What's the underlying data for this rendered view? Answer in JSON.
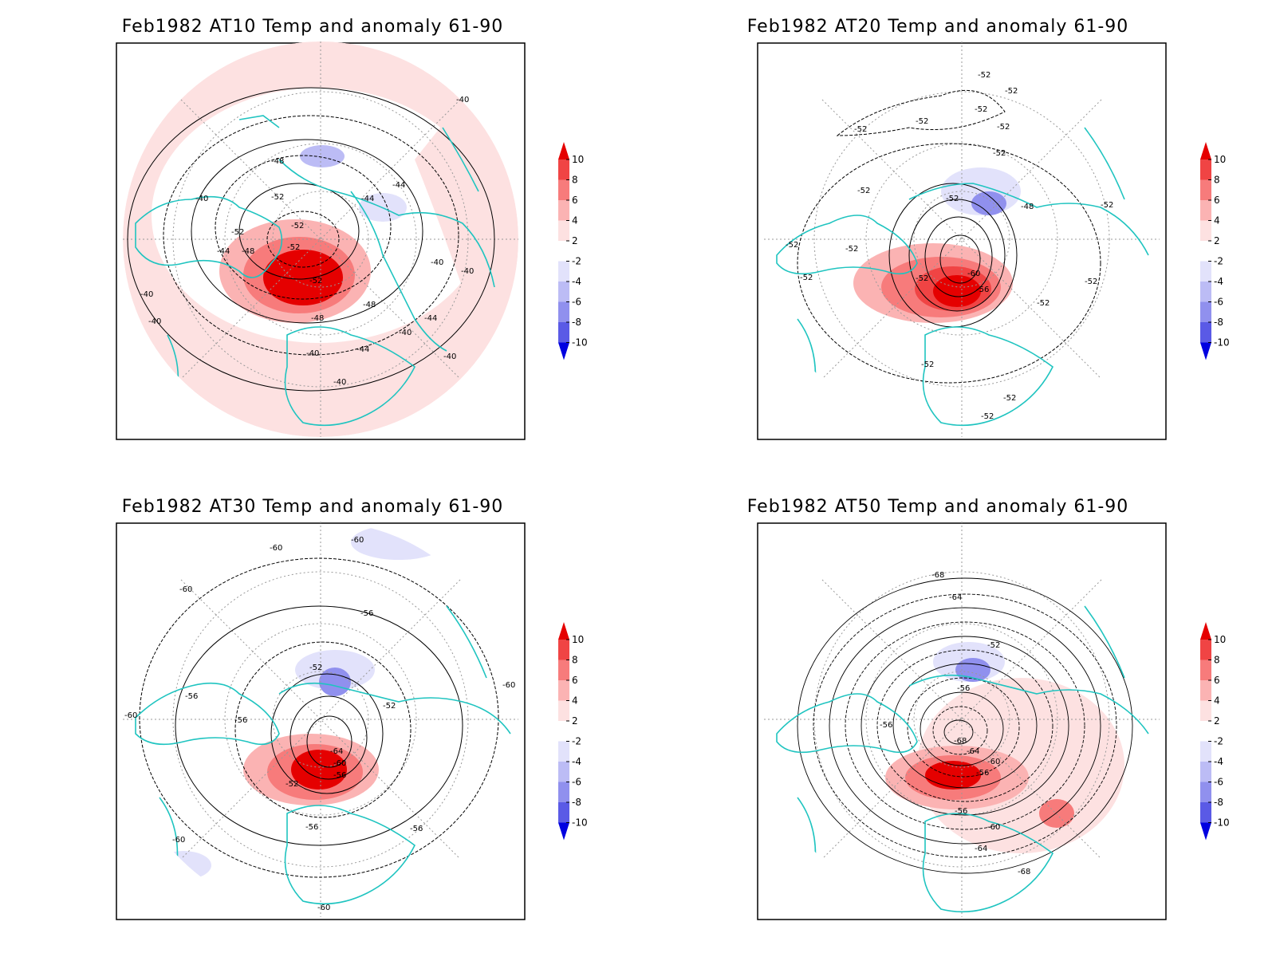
{
  "panels": [
    {
      "title": "Feb1982 AT10 Temp and anomaly 61-90",
      "contour_labels": [
        "-40",
        "-44",
        "-48",
        "-52",
        "-52",
        "-52",
        "-52",
        "-48",
        "-44",
        "-40",
        "-40",
        "-44",
        "-48",
        "-40",
        "-44",
        "-40",
        "-40",
        "-40",
        "-40",
        "-44",
        "-48",
        "-52",
        "-40",
        "-40"
      ],
      "colorbar_ticks": [
        "10",
        "8",
        "6",
        "4",
        "2",
        "-2",
        "-4",
        "-6",
        "-8",
        "-10"
      ]
    },
    {
      "title": "Feb1982 AT20 Temp and anomaly 61-90",
      "contour_labels": [
        "-52",
        "-52",
        "-52",
        "-52",
        "-52",
        "-52",
        "-52",
        "-52",
        "-52",
        "-60",
        "-56",
        "-52",
        "-52",
        "-52",
        "-52",
        "-52",
        "-52",
        "-52",
        "-52",
        "-52",
        "-48",
        "-52"
      ],
      "colorbar_ticks": [
        "10",
        "8",
        "6",
        "4",
        "2",
        "-2",
        "-4",
        "-6",
        "-8",
        "-10"
      ]
    },
    {
      "title": "Feb1982 AT30 Temp and anomaly 61-90",
      "contour_labels": [
        "-60",
        "-60",
        "-60",
        "-56",
        "-52",
        "-52",
        "-56",
        "-56",
        "-64",
        "-60",
        "-56",
        "-52",
        "-56",
        "-56",
        "-60",
        "-60",
        "-60",
        "-60"
      ],
      "colorbar_ticks": [
        "10",
        "8",
        "6",
        "4",
        "2",
        "-2",
        "-4",
        "-6",
        "-8",
        "-10"
      ]
    },
    {
      "title": "Feb1982 AT50 Temp and anomaly 61-90",
      "contour_labels": [
        "-68",
        "-64",
        "-52",
        "-56",
        "-56",
        "-68",
        "-64",
        "-60",
        "-56",
        "-56",
        "-60",
        "-64",
        "-68"
      ],
      "colorbar_ticks": [
        "10",
        "8",
        "6",
        "4",
        "2",
        "-2",
        "-4",
        "-6",
        "-8",
        "-10"
      ]
    }
  ],
  "colors": {
    "coast": "#1fc4c0",
    "contour": "#000000",
    "warm": [
      "#fde1e1",
      "#fbb3b3",
      "#f77b7b",
      "#f04444",
      "#e50000"
    ],
    "cold": [
      "#e2e2fb",
      "#bcbcf5",
      "#9090ee",
      "#5a5ae6",
      "#0000e0"
    ]
  }
}
